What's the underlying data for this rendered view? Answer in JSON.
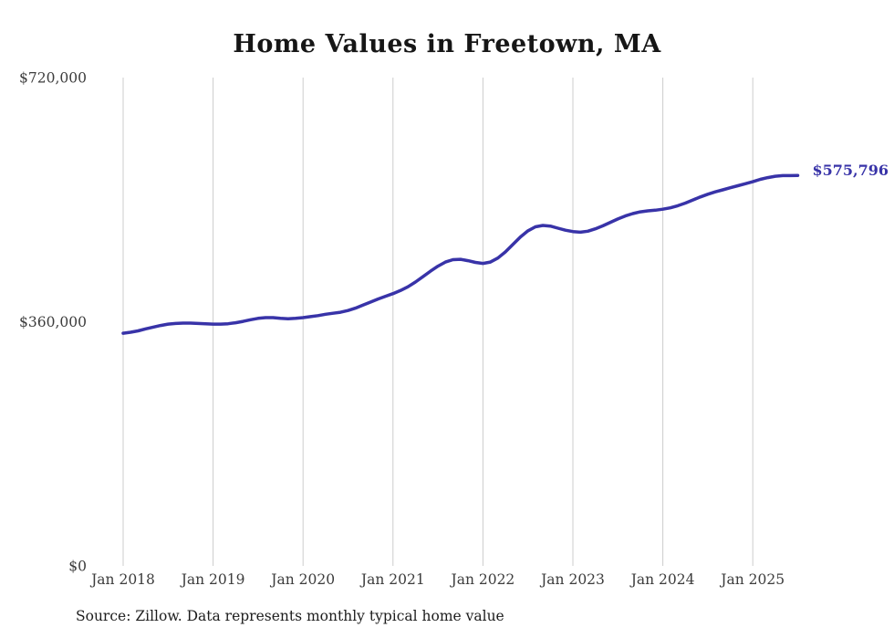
{
  "chart_data": {
    "type": "line",
    "title": "Home Values in Freetown, MA",
    "xlabel": "",
    "ylabel": "",
    "ylim": [
      0,
      720000
    ],
    "grid": "vertical-only",
    "line_color": "#3833a8",
    "grid_color": "#cccccc",
    "yticks": [
      {
        "label": "$0",
        "value": 0
      },
      {
        "label": "$360,000",
        "value": 360000
      },
      {
        "label": "$720,000",
        "value": 720000
      }
    ],
    "xticks": [
      "Jan 2018",
      "Jan 2019",
      "Jan 2020",
      "Jan 2021",
      "Jan 2022",
      "Jan 2023",
      "Jan 2024",
      "Jan 2025"
    ],
    "end_label": "$575,796",
    "source": "Source: Zillow. Data represents monthly typical home value",
    "x": [
      "2018-01",
      "2018-02",
      "2018-03",
      "2018-04",
      "2018-05",
      "2018-06",
      "2018-07",
      "2018-08",
      "2018-09",
      "2018-10",
      "2018-11",
      "2018-12",
      "2019-01",
      "2019-02",
      "2019-03",
      "2019-04",
      "2019-05",
      "2019-06",
      "2019-07",
      "2019-08",
      "2019-09",
      "2019-10",
      "2019-11",
      "2019-12",
      "2020-01",
      "2020-02",
      "2020-03",
      "2020-04",
      "2020-05",
      "2020-06",
      "2020-07",
      "2020-08",
      "2020-09",
      "2020-10",
      "2020-11",
      "2020-12",
      "2021-01",
      "2021-02",
      "2021-03",
      "2021-04",
      "2021-05",
      "2021-06",
      "2021-07",
      "2021-08",
      "2021-09",
      "2021-10",
      "2021-11",
      "2021-12",
      "2022-01",
      "2022-02",
      "2022-03",
      "2022-04",
      "2022-05",
      "2022-06",
      "2022-07",
      "2022-08",
      "2022-09",
      "2022-10",
      "2022-11",
      "2022-12",
      "2023-01",
      "2023-02",
      "2023-03",
      "2023-04",
      "2023-05",
      "2023-06",
      "2023-07",
      "2023-08",
      "2023-09",
      "2023-10",
      "2023-11",
      "2023-12",
      "2024-01",
      "2024-02",
      "2024-03",
      "2024-04",
      "2024-05",
      "2024-06",
      "2024-07",
      "2024-08",
      "2024-09",
      "2024-10",
      "2024-11",
      "2024-12",
      "2025-01",
      "2025-02",
      "2025-03",
      "2025-04",
      "2025-05",
      "2025-06",
      "2025-07"
    ],
    "values": [
      343000,
      344500,
      346500,
      349500,
      352000,
      354500,
      356500,
      357500,
      358000,
      358000,
      357500,
      357000,
      356500,
      356500,
      357000,
      358500,
      360500,
      363000,
      365000,
      366000,
      366000,
      365000,
      364500,
      365000,
      366000,
      367500,
      369000,
      371000,
      372500,
      374000,
      376500,
      380000,
      384500,
      389000,
      393500,
      397500,
      401500,
      406000,
      411500,
      418500,
      426500,
      434500,
      442000,
      448000,
      451500,
      452000,
      450000,
      447500,
      446000,
      448000,
      454000,
      463000,
      474000,
      485000,
      494000,
      500000,
      502000,
      501000,
      498000,
      495000,
      493000,
      492000,
      493500,
      497000,
      501500,
      506500,
      511500,
      516000,
      519500,
      522000,
      523500,
      524500,
      526000,
      528000,
      531000,
      535000,
      539500,
      544000,
      548000,
      551500,
      554500,
      557500,
      560500,
      563500,
      566500,
      570000,
      572500,
      574500,
      575500,
      575500,
      575796
    ]
  }
}
